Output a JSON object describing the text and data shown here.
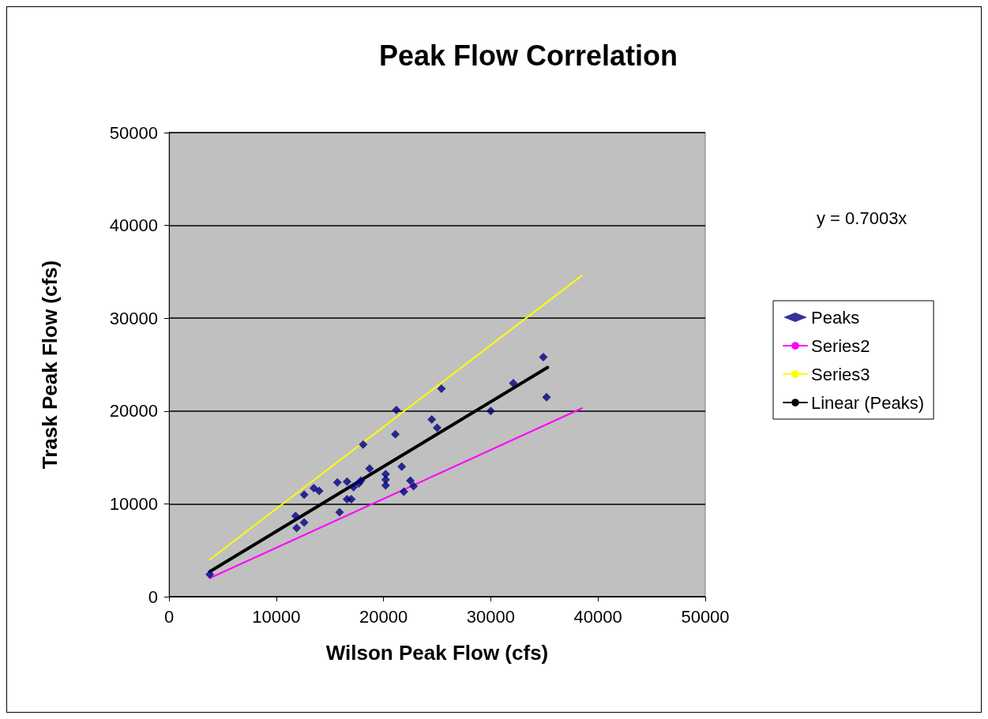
{
  "chart_data": {
    "type": "scatter",
    "title": "Peak Flow Correlation",
    "xlabel": "Wilson Peak Flow (cfs)",
    "ylabel": "Trask Peak Flow (cfs)",
    "annotations": [
      "y = 0.7003x"
    ],
    "xlim": [
      0,
      50000
    ],
    "xticks": [
      0,
      10000,
      20000,
      30000,
      40000,
      50000
    ],
    "ylim": [
      0,
      50000
    ],
    "yticks": [
      0,
      10000,
      20000,
      30000,
      40000,
      50000
    ],
    "grid": "y",
    "legend": "right",
    "series": [
      {
        "name": "Peaks",
        "marker": "diamond",
        "color": "#000080",
        "x": [
          3800,
          11800,
          11900,
          12600,
          12600,
          13500,
          14000,
          15700,
          15900,
          16600,
          17000,
          16600,
          17200,
          17700,
          17900,
          18700,
          18100,
          20200,
          20200,
          20200,
          21700,
          21900,
          22500,
          22800,
          21200,
          21100,
          24500,
          25000,
          25400,
          30000,
          32100,
          34900,
          35200
        ],
        "values": [
          2400,
          8700,
          7400,
          8000,
          11000,
          11700,
          11400,
          12300,
          9100,
          10500,
          10500,
          12400,
          11800,
          12200,
          12500,
          13800,
          16400,
          12000,
          12600,
          13200,
          14000,
          11300,
          12500,
          11900,
          20100,
          17500,
          19100,
          18200,
          22400,
          20000,
          23000,
          25800,
          21500
        ]
      },
      {
        "name": "Series2",
        "type": "line",
        "color": "#ff00ff",
        "x": [
          3800,
          38500
        ],
        "values": [
          2000,
          20300
        ]
      },
      {
        "name": "Series3",
        "type": "line",
        "color": "#ffff00",
        "x": [
          3800,
          38500
        ],
        "values": [
          4000,
          34600
        ]
      },
      {
        "name": "Linear (Peaks)",
        "type": "line",
        "color": "#000000",
        "x": [
          3800,
          35300
        ],
        "values": [
          2700,
          24700
        ]
      }
    ]
  }
}
